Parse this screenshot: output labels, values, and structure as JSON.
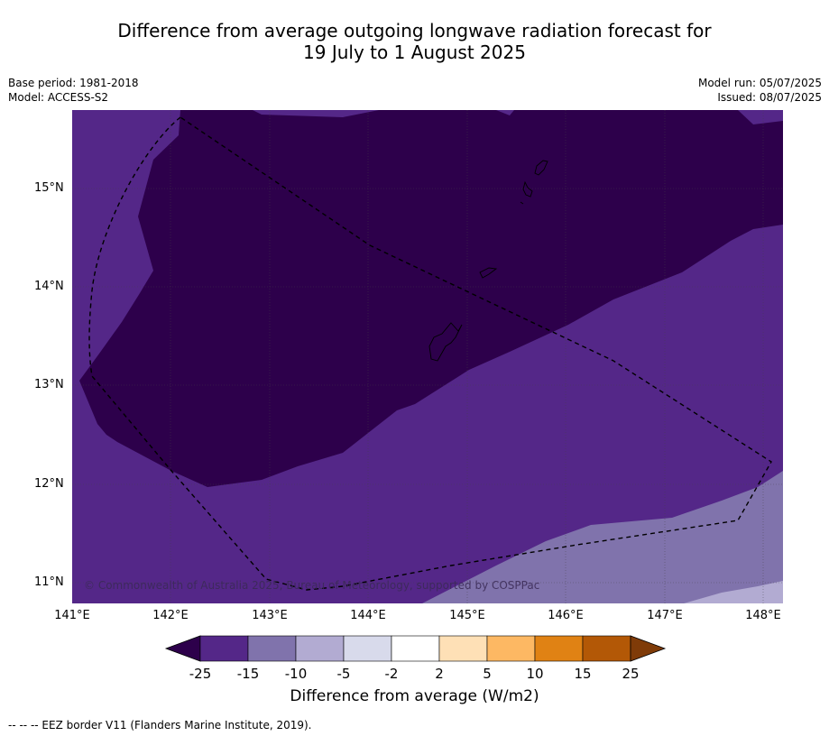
{
  "title": {
    "line1": "Difference from average outgoing longwave radiation forecast for",
    "line2": "19 July to 1 August 2025"
  },
  "meta": {
    "base_period": "Base period: 1981-2018",
    "model": "Model: ACCESS-S2",
    "model_run": "Model run: 05/07/2025",
    "issued": "Issued: 08/07/2025"
  },
  "map": {
    "latitude_labels": [
      "15°N",
      "14°N",
      "13°N",
      "12°N",
      "11°N"
    ],
    "longitude_labels": [
      "141°E",
      "142°E",
      "143°E",
      "144°E",
      "145°E",
      "146°E",
      "147°E",
      "148°E"
    ],
    "copyright": "© Commonwealth of Australia 2025, Bureau of Meteorology, supported by COSPPac",
    "colors": {
      "below_25": "#2d004b",
      "m25_m15": "#542788",
      "m15_m10": "#8073ac",
      "m10_m5": "#b2abd2",
      "m5_m2": "#d8daeb",
      "m2_2": "#ffffff",
      "2_5": "#fee0b6",
      "5_10": "#fdb863",
      "10_15": "#e08214",
      "15_25": "#b35806",
      "above_25": "#7f3b08"
    }
  },
  "colorbar": {
    "ticks": [
      "-25",
      "-15",
      "-10",
      "-5",
      "-2",
      "2",
      "5",
      "10",
      "15",
      "25"
    ],
    "colors": [
      "#542788",
      "#8073ac",
      "#b2abd2",
      "#d8daeb",
      "#ffffff",
      "#fee0b6",
      "#fdb863",
      "#e08214",
      "#b35806"
    ],
    "under_color": "#2d004b",
    "over_color": "#7f3b08",
    "label": "Difference from average (W/m2)"
  },
  "footnote": "-- -- -- EEZ border V11 (Flanders Marine Institute, 2019)."
}
